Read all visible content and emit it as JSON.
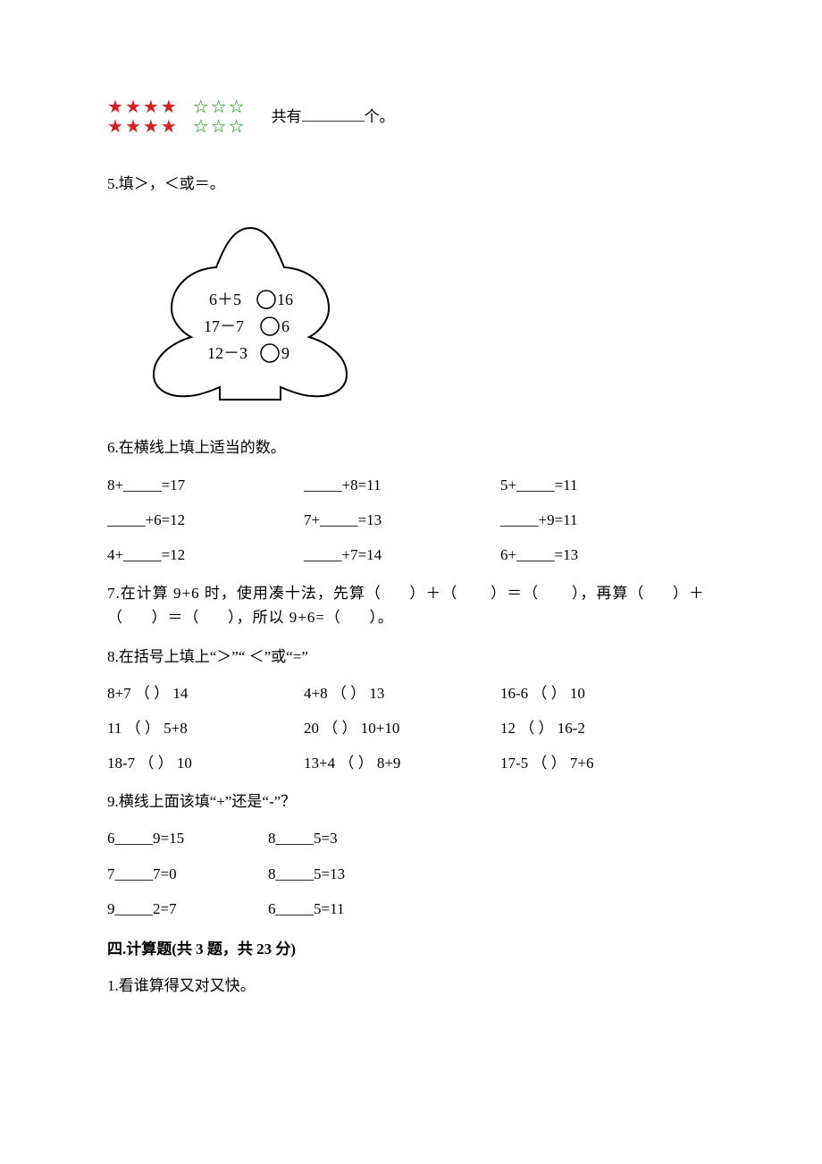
{
  "stars": {
    "red_per_row": 4,
    "green_per_row": 3,
    "rows": 2,
    "text_prefix": "共有",
    "text_suffix": "个。",
    "blank_width": 70,
    "star_colors": {
      "red": "#d42020",
      "green": "#2da82d"
    }
  },
  "q5": {
    "label": "5.填＞，＜或＝。",
    "lines": [
      "6＋5",
      "17－7",
      "12－3"
    ],
    "rhs": [
      "16",
      "6",
      "9"
    ]
  },
  "q6": {
    "label": "6.在横线上填上适当的数。",
    "rows": [
      [
        "8+_____=17",
        "_____+8=11",
        "5+_____=11"
      ],
      [
        "_____+6=12",
        "7+_____=13",
        "_____+9=11"
      ],
      [
        "4+_____=12",
        "_____+7=14",
        "6+_____=13"
      ]
    ]
  },
  "q7": {
    "text": "7.在计算 9+6 时，使用凑十法，先算（      ）＋（       ）＝（       ），再算（      ）＋（      ）＝（      ），所以 9+6=（      ）。"
  },
  "q8": {
    "label": "8.在括号上填上“＞”“ ＜”或“=”",
    "rows": [
      [
        "8+7 （      ） 14",
        "4+8 （      ） 13",
        "16-6 （      ） 10"
      ],
      [
        "11 （      ） 5+8",
        "20 （      ） 10+10",
        "12 （      ） 16-2"
      ],
      [
        "18-7 （      ） 10",
        "13+4 （      ） 8+9",
        "17-5 （      ） 7+6"
      ]
    ]
  },
  "q9": {
    "label": "9.横线上面该填“+”还是“-”？",
    "rows": [
      [
        "6_____9=15",
        "8_____5=3"
      ],
      [
        "7_____7=0",
        "8_____5=13"
      ],
      [
        "9_____2=7",
        "6_____5=11"
      ]
    ]
  },
  "section4": {
    "title": "四.计算题(共 3 题，共 23 分)",
    "q1": "1.看谁算得又对又快。"
  }
}
